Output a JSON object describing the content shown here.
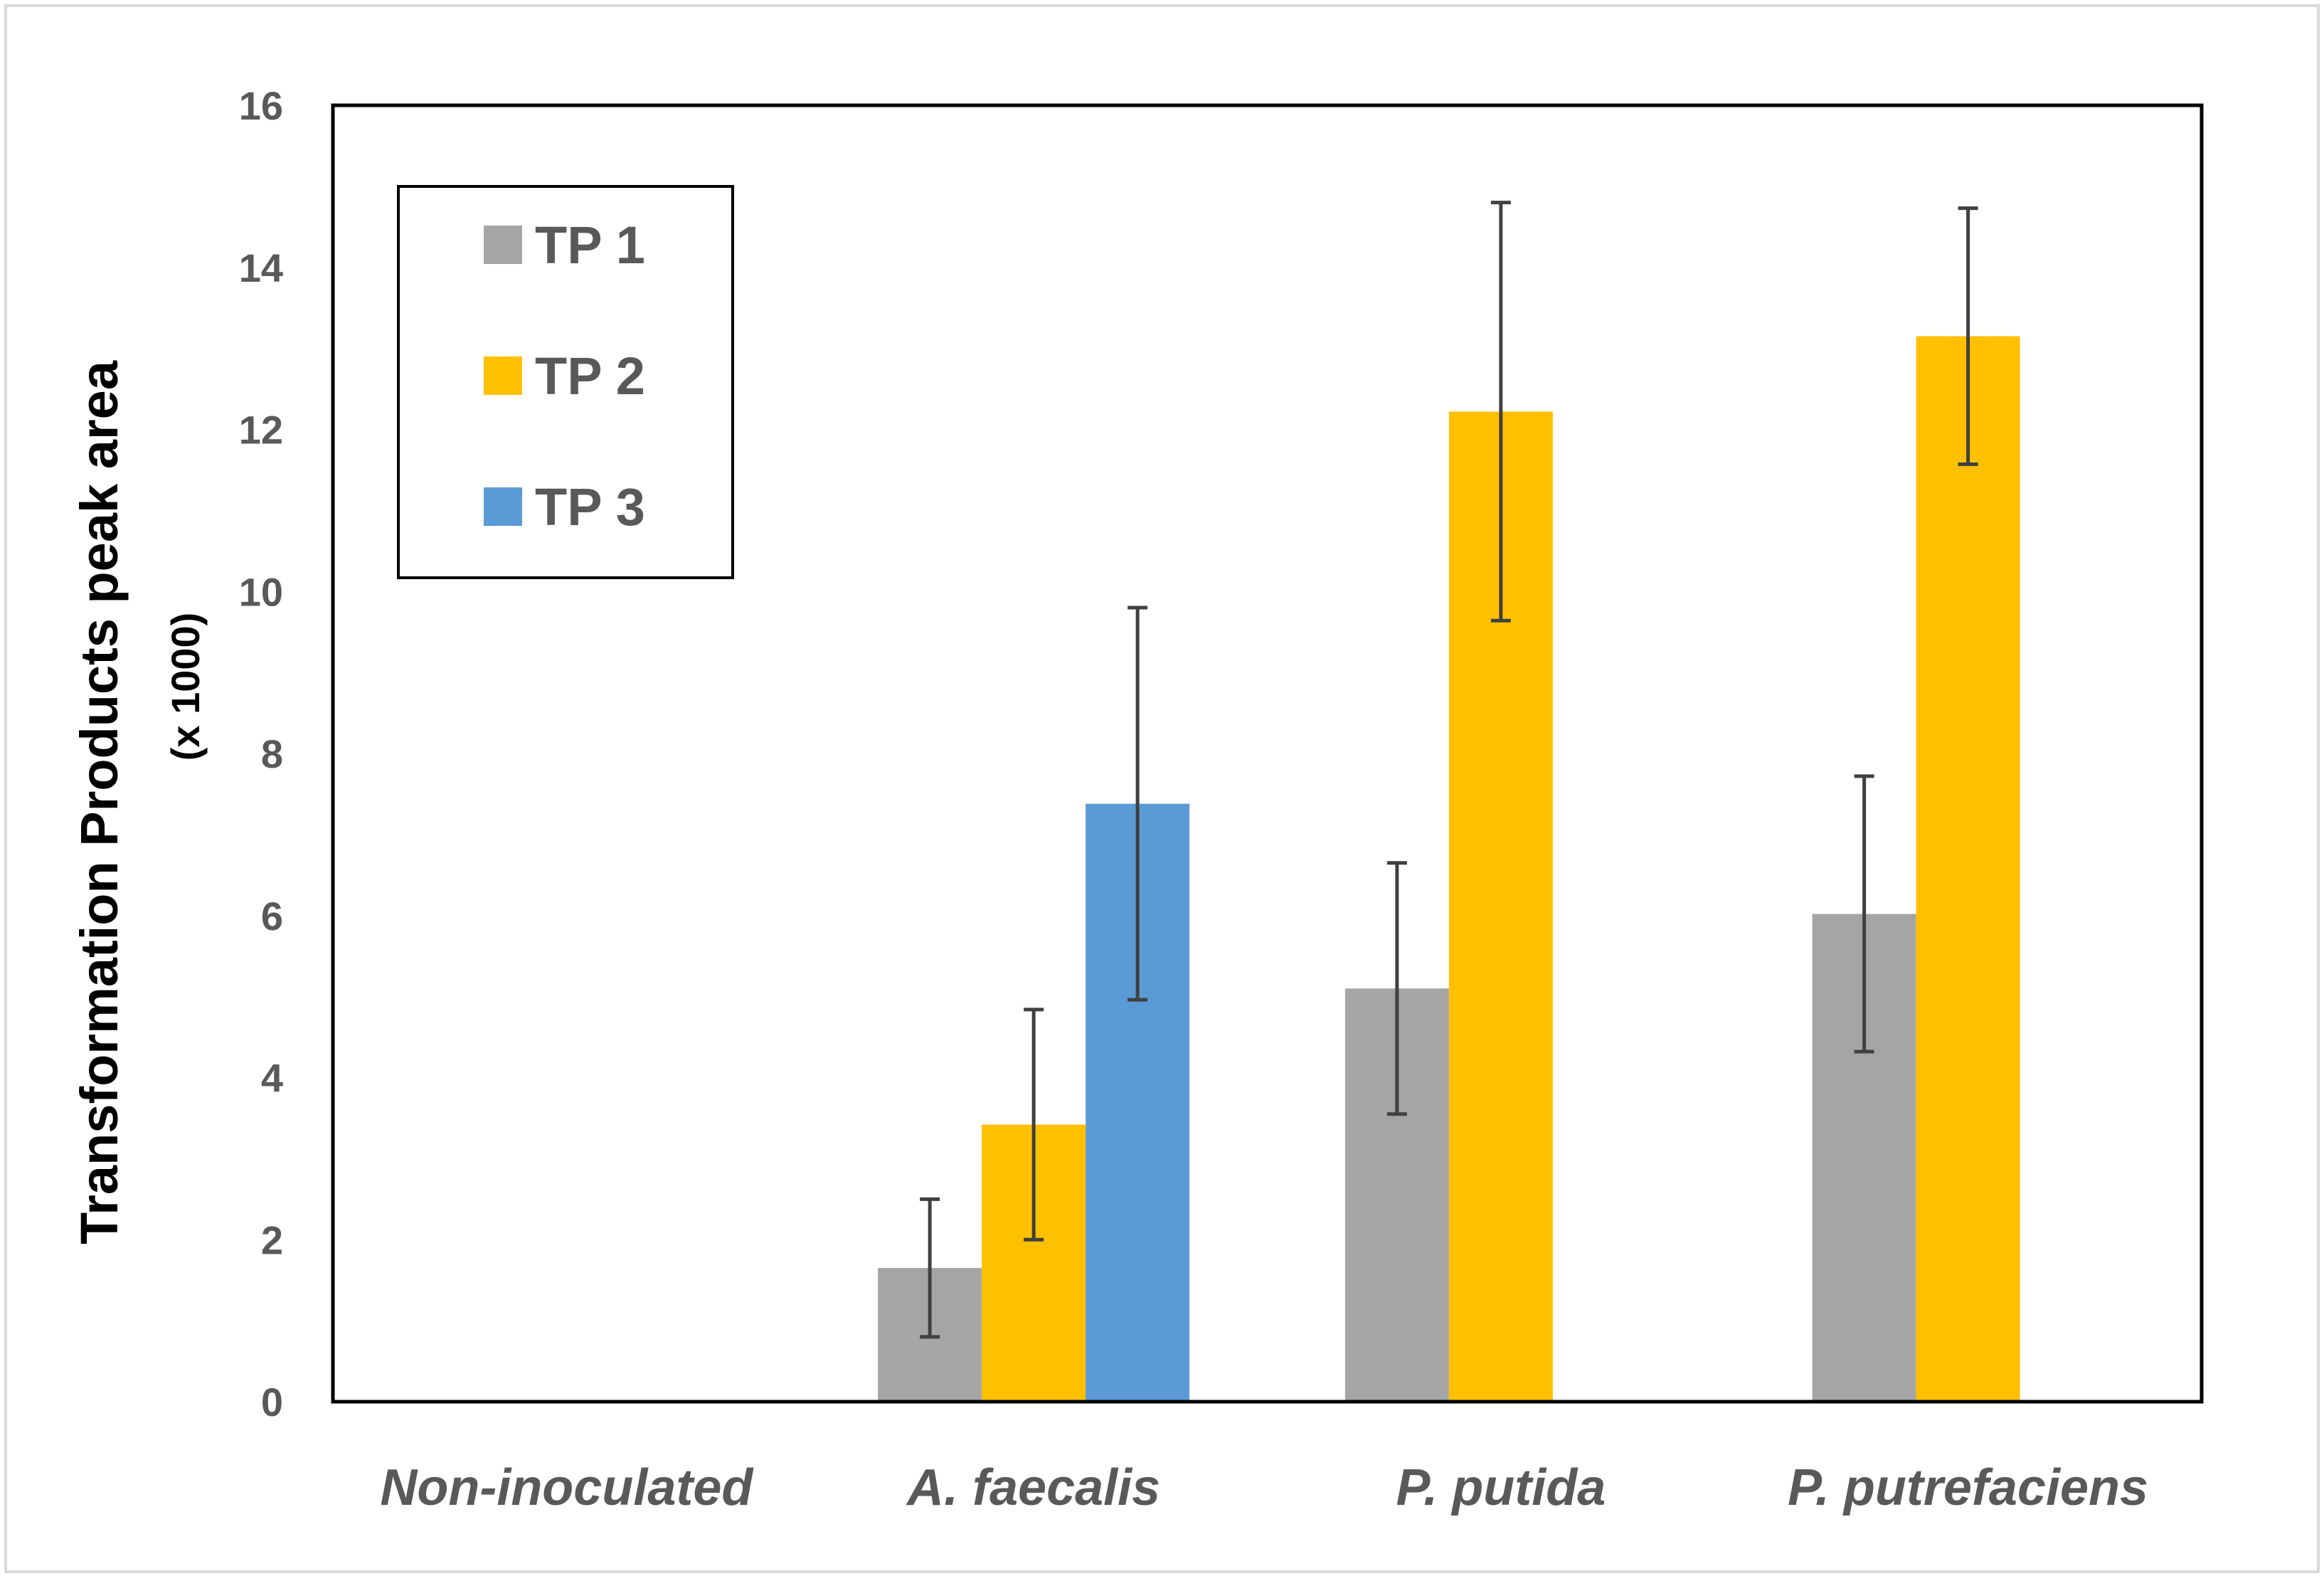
{
  "chart_data": {
    "type": "bar",
    "title": "",
    "xlabel": "",
    "ylabel_line1": "Transformation Products  peak area",
    "ylabel_line2": "(x 1000)",
    "ylim": [
      0,
      16
    ],
    "yticks": [
      0,
      2,
      4,
      6,
      8,
      10,
      12,
      14,
      16
    ],
    "grid": false,
    "legend_position": "top-left",
    "categories": [
      "Non-inoculated",
      "A. faecalis",
      "P. putida",
      "P. putrefaciens"
    ],
    "series": [
      {
        "name": "TP 1",
        "color": "#a5a5a5",
        "values": [
          0,
          1.65,
          5.1,
          6.02
        ],
        "errors": [
          0,
          0.85,
          1.55,
          1.7
        ]
      },
      {
        "name": "TP 2",
        "color": "#ffc000",
        "values": [
          0,
          3.42,
          12.22,
          13.15
        ],
        "errors": [
          0,
          1.42,
          2.58,
          1.58
        ]
      },
      {
        "name": "TP 3",
        "color": "#5b9bd5",
        "values": [
          0,
          7.38,
          0,
          0
        ],
        "errors": [
          0,
          2.42,
          0,
          0
        ]
      }
    ]
  },
  "colors": {
    "axis": "#000000",
    "tick_label": "#595959",
    "error_bar": "#404040",
    "frame": "#d9d9d9"
  }
}
